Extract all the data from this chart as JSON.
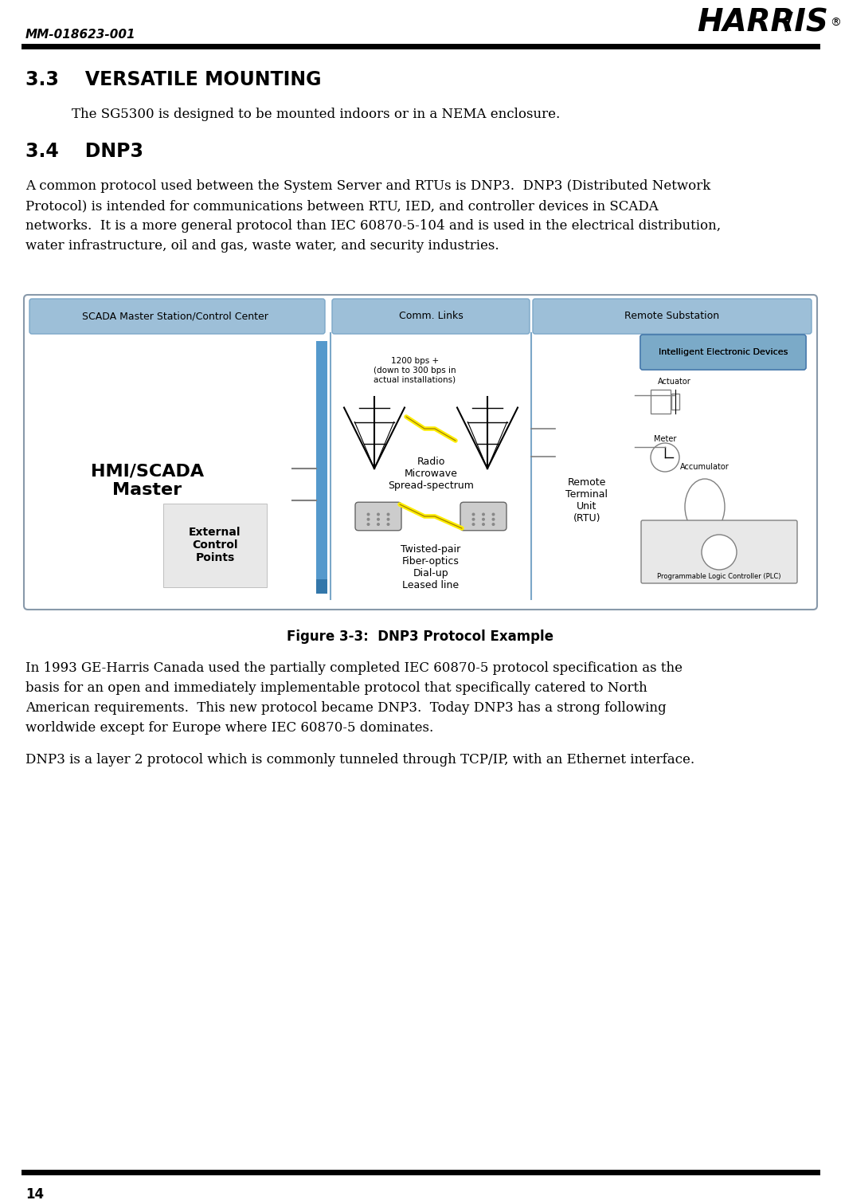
{
  "header_text": "MM-018623-001",
  "footer_page": "14",
  "section_33_title": "3.3    VERSATILE MOUNTING",
  "section_33_body": "The SG5300 is designed to be mounted indoors or in a NEMA enclosure.",
  "section_34_title": "3.4    DNP3",
  "body1_line1": "A common protocol used between the System Server and RTUs is DNP3.  DNP3 (Distributed Network",
  "body1_line2": "Protocol) is intended for communications between RTU, IED, and controller devices in SCADA",
  "body1_line3": "networks.  It is a more general protocol than IEC 60870-5-104 and is used in the electrical distribution,",
  "body1_line4": "water infrastructure, oil and gas, waste water, and security industries.",
  "figure_caption": "Figure 3-3:  DNP3 Protocol Example",
  "body2_line1": "In 1993 GE-Harris Canada used the partially completed IEC 60870-5 protocol specification as the",
  "body2_line2": "basis for an open and immediately implementable protocol that specifically catered to North",
  "body2_line3": "American requirements.  This new protocol became DNP3.  Today DNP3 has a strong following",
  "body2_line4": "worldwide except for Europe where IEC 60870-5 dominates.",
  "body3": "DNP3 is a layer 2 protocol which is commonly tunneled through TCP/IP, with an Ethernet interface.",
  "tab1": "SCADA Master Station/Control Center",
  "tab2": "Comm. Links",
  "tab3": "Remote Substation",
  "label_hmi": "HMI/SCADA\nMaster",
  "label_ext": "External\nControl\nPoints",
  "label_radio": "Radio\nMicrowave\nSpread-spectrum",
  "label_twisted": "Twisted-pair\nFiber-optics\nDial-up\nLeased line",
  "label_1200": "1200 bps +\n(down to 300 bps in\nactual installations)",
  "label_ied": "Intelligent Electronic Devices",
  "label_actuator": "Actuator",
  "label_meter": "Meter",
  "label_accumulator": "Accumulator",
  "label_rtu": "Remote\nTerminal\nUnit\n(RTU)",
  "label_plc": "Programmable Logic Controller (PLC)",
  "bg": "#ffffff",
  "tab_fill": "#7ba7c8",
  "tab_grad_top": "#a8c8e0",
  "diagram_bg": "#f5f5f5",
  "diagram_border": "#8899aa",
  "ied_fill": "#7baac8",
  "line_color": "#4477aa",
  "bar_color": "#5599cc"
}
